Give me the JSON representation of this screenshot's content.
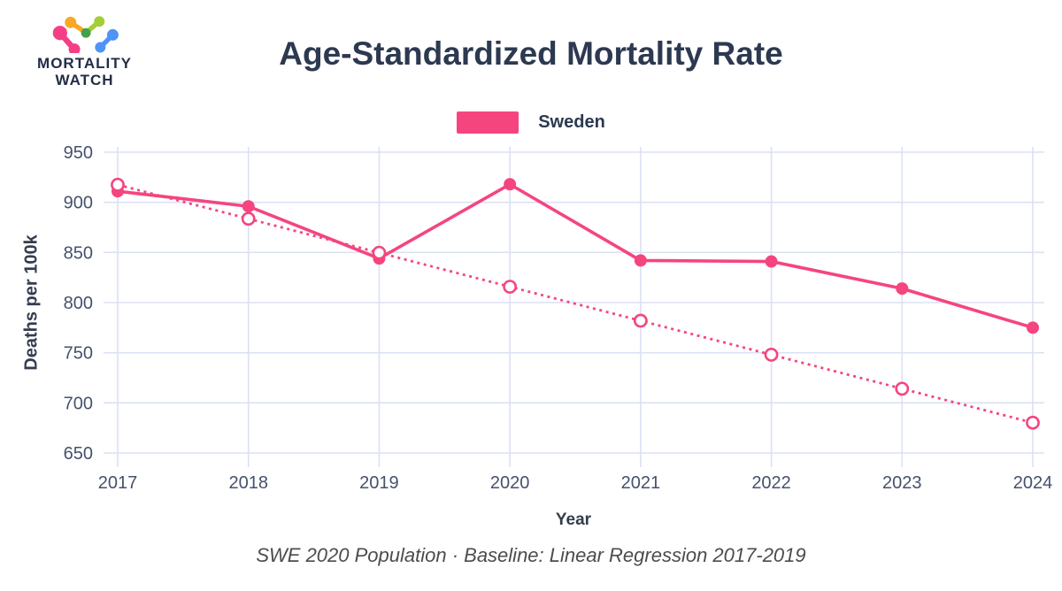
{
  "branding": {
    "line1": "MORTALITY",
    "line2": "WATCH"
  },
  "legend": {
    "label": "Sweden"
  },
  "footer": {
    "note": "SWE 2020 Population · Baseline: Linear Regression 2017-2019"
  },
  "chart_data": {
    "type": "line",
    "title": "Age-Standardized Mortality Rate",
    "xlabel": "Year",
    "ylabel": "Deaths per 100k",
    "categories": [
      "2017",
      "2018",
      "2019",
      "2020",
      "2021",
      "2022",
      "2023",
      "2024"
    ],
    "series": [
      {
        "name": "Sweden",
        "role": "actual",
        "style": "solid",
        "marker": "filled",
        "values": [
          911,
          896,
          844,
          918,
          842,
          841,
          814,
          775
        ]
      },
      {
        "name": "Sweden baseline",
        "role": "baseline",
        "style": "dotted",
        "marker": "open",
        "values": [
          917.5,
          883.6,
          849.7,
          815.8,
          781.9,
          748.0,
          714.1,
          680.2
        ]
      }
    ],
    "ylim": [
      650,
      950
    ],
    "yticks": [
      950,
      900,
      850,
      800,
      750,
      700,
      650
    ],
    "grid": true,
    "legend_position": "top",
    "line_color": "#f5457f",
    "logo_colors": {
      "pink": "#f43f85",
      "orange": "#f9a825",
      "lime": "#a4ce39",
      "green": "#43a047",
      "blue": "#4f93f7"
    }
  }
}
